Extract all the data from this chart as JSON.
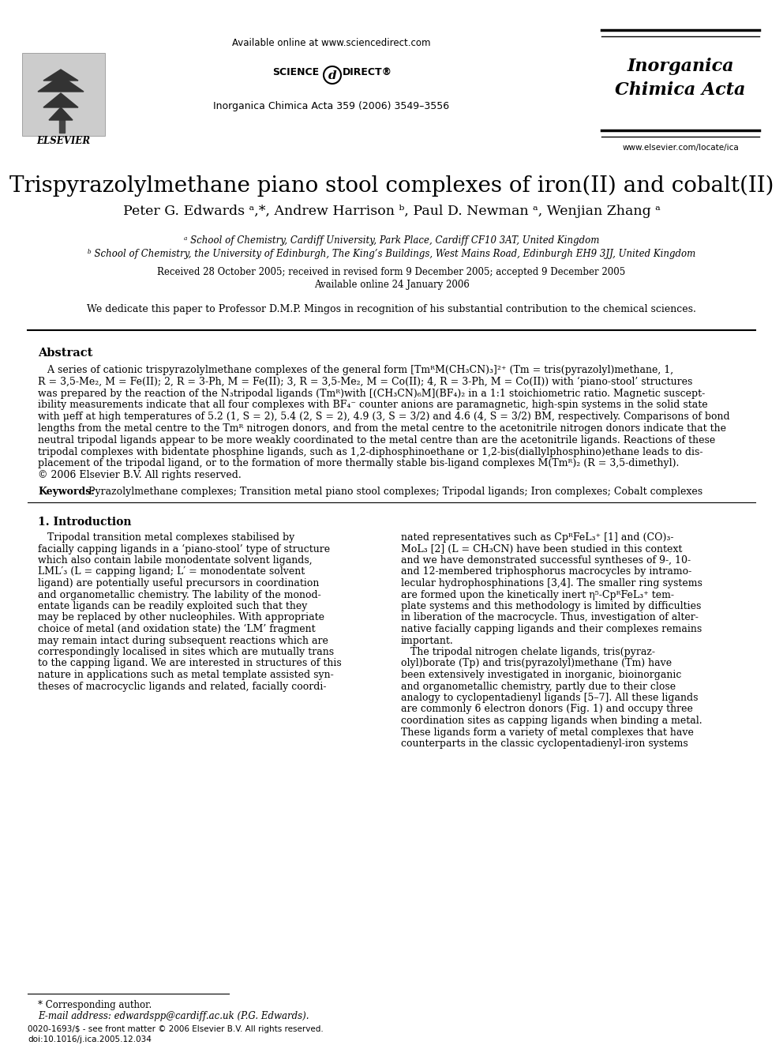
{
  "bg_color": "#ffffff",
  "title": "Trispyrazolylmethane piano stool complexes of iron(II) and cobalt(II)",
  "authors": "Peter G. Edwards ᵃ,*, Andrew Harrison ᵇ, Paul D. Newman ᵃ, Wenjian Zhang ᵃ",
  "affil_a": "ᵃ School of Chemistry, Cardiff University, Park Place, Cardiff CF10 3AT, United Kingdom",
  "affil_b": "ᵇ School of Chemistry, the University of Edinburgh, The King’s Buildings, West Mains Road, Edinburgh EH9 3JJ, United Kingdom",
  "received": "Received 28 October 2005; received in revised form 9 December 2005; accepted 9 December 2005",
  "available": "Available online 24 January 2006",
  "dedication": "We dedicate this paper to Professor D.M.P. Mingos in recognition of his substantial contribution to the chemical sciences.",
  "journal_header": "Inorganica Chimica Acta 359 (2006) 3549–3556",
  "available_online": "Available online at www.sciencedirect.com",
  "science_text": "SCIENCE",
  "direct_text": "DIRECT®",
  "journal_name_line1": "Inorganica",
  "journal_name_line2": "Chimica Acta",
  "website": "www.elsevier.com/locate/ica",
  "abstract_title": "Abstract",
  "keywords_label": "Keywords:",
  "keywords": "Pyrazolylmethane complexes; Transition metal piano stool complexes; Tripodal ligands; Iron complexes; Cobalt complexes",
  "section1_title": "1. Introduction",
  "footnote_star": "* Corresponding author.",
  "footnote_email": "E-mail address: edwardspp@cardiff.ac.uk (P.G. Edwards).",
  "issn_line": "0020-1693/$ - see front matter © 2006 Elsevier B.V. All rights reserved.",
  "doi_line": "doi:10.1016/j.ica.2005.12.034",
  "abstract_lines": [
    "   A series of cationic trispyrazolylmethane complexes of the general form [TmᴿM(CH₃CN)₃]²⁺ (Tm = tris(pyrazolyl)methane, 1,",
    "R = 3,5-Me₂, M = Fe(II); 2, R = 3-Ph, M = Fe(II); 3, R = 3,5-Me₂, M = Co(II); 4, R = 3-Ph, M = Co(II)) with ‘piano-stool’ structures",
    "was prepared by the reaction of the N₃tripodal ligands (Tmᴿ)with [(CH₃CN)₆M](BF₄)₂ in a 1:1 stoichiometric ratio. Magnetic suscept-",
    "ibility measurements indicate that all four complexes with BF₄⁻ counter anions are paramagnetic, high-spin systems in the solid state",
    "with μeff at high temperatures of 5.2 (1, S = 2), 5.4 (2, S = 2), 4.9 (3, S = 3/2) and 4.6 (4, S = 3/2) BM, respectively. Comparisons of bond",
    "lengths from the metal centre to the Tmᴿ nitrogen donors, and from the metal centre to the acetonitrile nitrogen donors indicate that the",
    "neutral tripodal ligands appear to be more weakly coordinated to the metal centre than are the acetonitrile ligands. Reactions of these",
    "tripodal complexes with bidentate phosphine ligands, such as 1,2-diphosphinoethane or 1,2-bis(diallylphosphino)ethane leads to dis-",
    "placement of the tripodal ligand, or to the formation of more thermally stable bis-ligand complexes M(Tmᴿ)₂ (R = 3,5-dimethyl).",
    "© 2006 Elsevier B.V. All rights reserved."
  ],
  "col1_lines": [
    "   Tripodal transition metal complexes stabilised by",
    "facially capping ligands in a ‘piano-stool’ type of structure",
    "which also contain labile monodentate solvent ligands,",
    "LML′₃ (L = capping ligand; L′ = monodentate solvent",
    "ligand) are potentially useful precursors in coordination",
    "and organometallic chemistry. The lability of the monod-",
    "entate ligands can be readily exploited such that they",
    "may be replaced by other nucleophiles. With appropriate",
    "choice of metal (and oxidation state) the ‘LM’ fragment",
    "may remain intact during subsequent reactions which are",
    "correspondingly localised in sites which are mutually trans",
    "to the capping ligand. We are interested in structures of this",
    "nature in applications such as metal template assisted syn-",
    "theses of macrocyclic ligands and related, facially coordi-"
  ],
  "col2_lines": [
    "nated representatives such as CpᴿFeL₃⁺ [1] and (CO)₃-",
    "MoL₃ [2] (L = CH₃CN) have been studied in this context",
    "and we have demonstrated successful syntheses of 9-, 10-",
    "and 12-membered triphosphorus macrocycles by intramo-",
    "lecular hydrophosphinations [3,4]. The smaller ring systems",
    "are formed upon the kinetically inert η⁵-CpᴿFeL₃⁺ tem-",
    "plate systems and this methodology is limited by difficulties",
    "in liberation of the macrocycle. Thus, investigation of alter-",
    "native facially capping ligands and their complexes remains",
    "important.",
    "   The tripodal nitrogen chelate ligands, tris(pyraz-",
    "olyl)borate (Tp) and tris(pyrazolyl)methane (Tm) have",
    "been extensively investigated in inorganic, bioinorganic",
    "and organometallic chemistry, partly due to their close",
    "analogy to cyclopentadienyl ligands [5–7]. All these ligands",
    "are commonly 6 electron donors (Fig. 1) and occupy three",
    "coordination sites as capping ligands when binding a metal.",
    "These ligands form a variety of metal complexes that have",
    "counterparts in the classic cyclopentadienyl-iron systems"
  ]
}
